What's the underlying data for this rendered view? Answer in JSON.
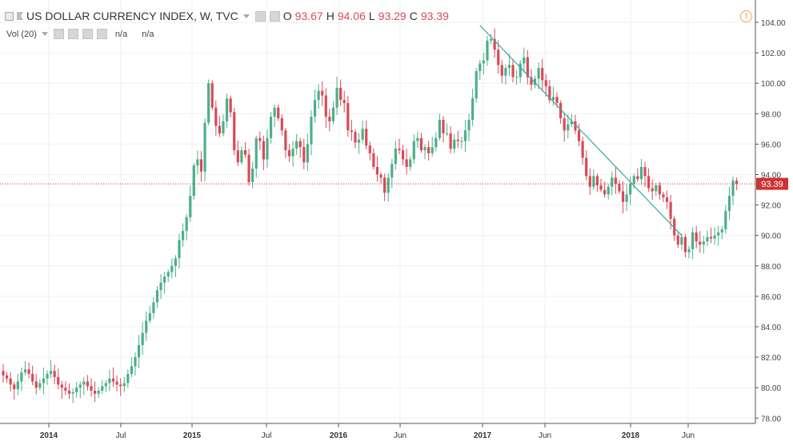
{
  "legend": {
    "symbol": "US DOLLAR CURRENCY INDEX, W, TVC",
    "o_label": "O",
    "o_value": "93.67",
    "h_label": "H",
    "h_value": "94.06",
    "l_label": "L",
    "l_value": "93.29",
    "c_label": "C",
    "c_value": "93.39"
  },
  "volume": {
    "label": "Vol (20)",
    "value1": "n/a",
    "value2": "n/a"
  },
  "alert_icon": "!",
  "colors": {
    "up": "#4caf8a",
    "down": "#d94a57",
    "trendline": "#3aa8a0",
    "price_line": "#cc3333",
    "grid": "#eef0f2"
  },
  "chart_data": {
    "type": "candlestick",
    "title": "US DOLLAR CURRENCY INDEX, W, TVC",
    "ylim": [
      77.2,
      104.6
    ],
    "y_ticks": [
      "104.00",
      "102.00",
      "100.00",
      "98.00",
      "96.00",
      "94.00",
      "92.00",
      "90.00",
      "88.00",
      "86.00",
      "84.00",
      "82.00",
      "80.00",
      "78.00"
    ],
    "x_ticks": [
      "2014",
      "Jul",
      "2015",
      "Jul",
      "2016",
      "Jun",
      "2017",
      "Jun",
      "2018",
      "Jun"
    ],
    "last_price_label": "93.39",
    "last_price": 93.39,
    "grid": true,
    "close_series_weekly": [
      80.8,
      80.6,
      80.2,
      79.9,
      80.4,
      81.0,
      81.2,
      80.9,
      80.4,
      80.0,
      80.3,
      80.6,
      80.9,
      81.1,
      80.7,
      80.2,
      80.0,
      79.8,
      79.6,
      79.7,
      80.0,
      80.2,
      80.4,
      80.1,
      79.8,
      79.6,
      79.8,
      80.1,
      80.3,
      80.6,
      80.4,
      80.2,
      80.1,
      80.3,
      80.9,
      81.4,
      82.0,
      82.8,
      83.6,
      84.4,
      84.9,
      85.6,
      86.4,
      86.9,
      87.3,
      87.6,
      88.0,
      88.5,
      89.7,
      90.3,
      91.2,
      92.6,
      94.6,
      95.0,
      94.2,
      97.4,
      100.0,
      98.4,
      97.2,
      96.7,
      97.5,
      99.0,
      98.1,
      95.6,
      94.8,
      95.6,
      95.3,
      93.5,
      94.4,
      96.4,
      96.2,
      95.0,
      96.4,
      97.8,
      98.4,
      97.7,
      96.9,
      95.6,
      95.2,
      95.7,
      96.2,
      95.8,
      94.8,
      96.0,
      97.8,
      98.9,
      99.5,
      99.2,
      97.8,
      97.5,
      98.4,
      99.7,
      98.9,
      98.7,
      96.9,
      96.8,
      96.1,
      96.3,
      97.0,
      95.9,
      95.4,
      94.5,
      94.0,
      93.8,
      92.8,
      93.8,
      94.7,
      95.7,
      95.6,
      95.0,
      94.5,
      95.0,
      96.2,
      96.4,
      95.6,
      95.8,
      95.4,
      95.8,
      96.4,
      97.6,
      96.7,
      96.7,
      95.7,
      96.3,
      96.2,
      96.2,
      96.9,
      97.6,
      99.0,
      100.8,
      101.3,
      101.5,
      102.8,
      102.9,
      102.2,
      101.2,
      100.5,
      101.0,
      101.2,
      100.4,
      100.4,
      101.3,
      101.7,
      100.4,
      99.9,
      100.3,
      101.0,
      100.2,
      99.8,
      98.9,
      99.1,
      98.7,
      97.7,
      96.9,
      97.3,
      97.5,
      96.9,
      96.2,
      95.1,
      93.9,
      93.2,
      93.9,
      93.3,
      93.0,
      92.7,
      93.2,
      93.8,
      93.4,
      92.9,
      92.2,
      92.7,
      93.4,
      93.9,
      93.7,
      94.5,
      93.9,
      93.1,
      92.9,
      93.3,
      92.7,
      92.5,
      92.2,
      91.1,
      90.0,
      89.4,
      89.9,
      88.9,
      89.1,
      90.2,
      89.6,
      89.4,
      89.6,
      89.9,
      89.8,
      90.0,
      90.2,
      90.4,
      91.6,
      92.6,
      93.6,
      93.4
    ]
  }
}
